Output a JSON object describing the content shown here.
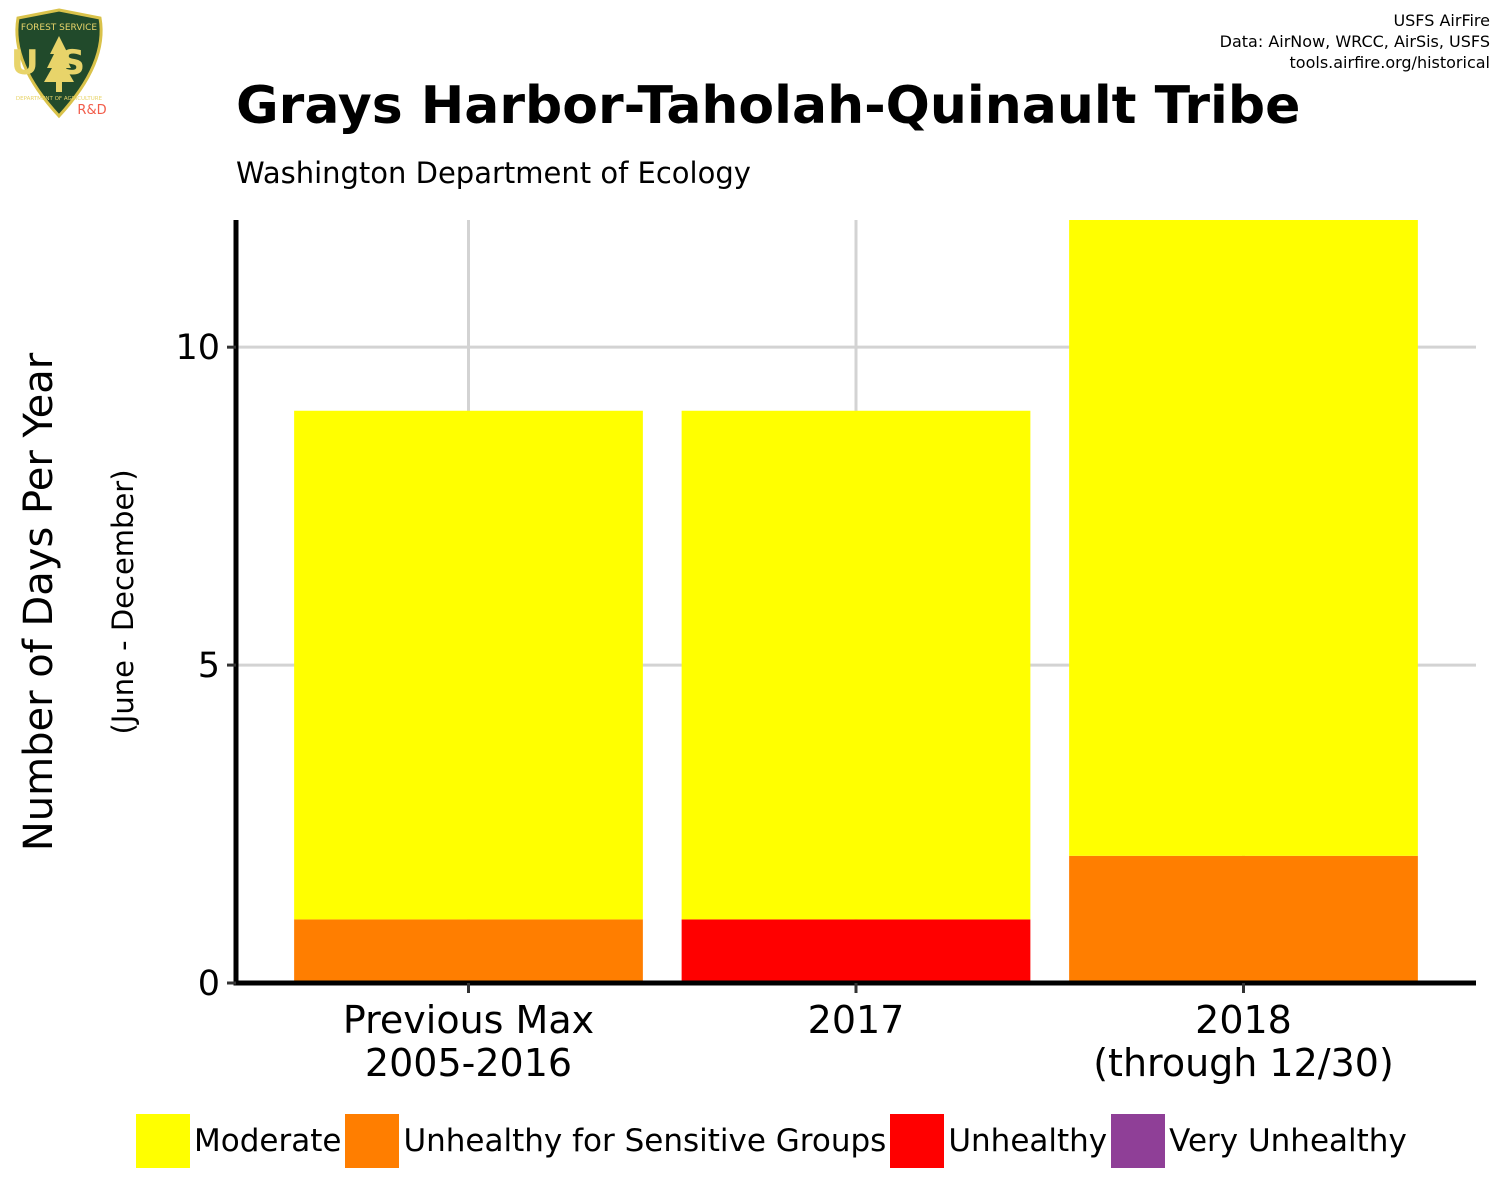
{
  "header": {
    "title": "Grays Harbor-Taholah-Quinault Tribe",
    "subtitle": "Washington Department of Ecology",
    "credits": [
      "USFS AirFire",
      "Data: AirNow, WRCC, AirSis, USFS",
      "tools.airfire.org/historical"
    ],
    "logo": {
      "icon": "forest-service-shield-icon",
      "top_text": "FOREST SERVICE",
      "letters": "US",
      "bottom_text": "DEPARTMENT OF AGRICULTURE",
      "badge": "R&D"
    }
  },
  "colors": {
    "Moderate": "#ffff00",
    "Unhealthy for Sensitive Groups": "#ff7e00",
    "Unhealthy": "#ff0000",
    "Very Unhealthy": "#8f3f97"
  },
  "chart_data": {
    "type": "bar",
    "stacked": true,
    "categories": [
      [
        "Previous Max",
        "2005-2016"
      ],
      [
        "2017"
      ],
      [
        "2018",
        "(through 12/30)"
      ]
    ],
    "series": [
      {
        "name": "Unhealthy for Sensitive Groups",
        "values": [
          1,
          0,
          2
        ]
      },
      {
        "name": "Unhealthy",
        "values": [
          0,
          1,
          0
        ]
      },
      {
        "name": "Moderate",
        "values": [
          8,
          8,
          10
        ]
      },
      {
        "name": "Very Unhealthy",
        "values": [
          0,
          0,
          0
        ]
      }
    ],
    "ylabel": "Number of Days Per Year",
    "ylabel_sub": "(June - December)",
    "xlabel": "",
    "ylim": [
      0,
      12
    ],
    "yticks": [
      0,
      5,
      10
    ],
    "grid": true,
    "legend_position": "bottom",
    "legend": [
      "Moderate",
      "Unhealthy for Sensitive Groups",
      "Unhealthy",
      "Very Unhealthy"
    ]
  }
}
